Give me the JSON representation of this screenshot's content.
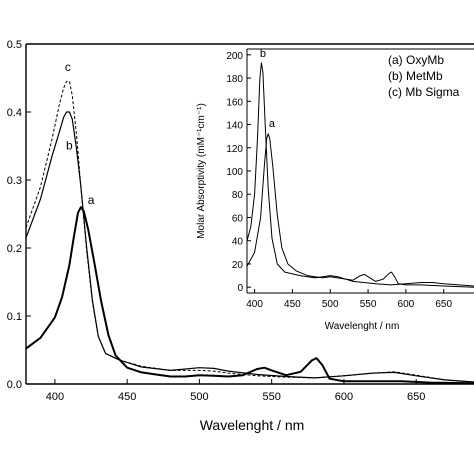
{
  "chart_data": [
    {
      "type": "line",
      "title": "",
      "xlabel": "Wavelenght / nm",
      "ylabel": "",
      "xlim": [
        380,
        690
      ],
      "ylim": [
        0.0,
        0.5
      ],
      "x_ticks": [
        "400",
        "450",
        "500",
        "550",
        "600",
        "650"
      ],
      "y_ticks": [
        "0.0",
        "0.1",
        "0.2",
        "0.3",
        "0.4",
        "0.5"
      ],
      "grid": false,
      "series": [
        {
          "name": "a",
          "style": "solid-thick",
          "points": [
            [
              380,
              0.052
            ],
            [
              390,
              0.068
            ],
            [
              400,
              0.098
            ],
            [
              405,
              0.128
            ],
            [
              410,
              0.175
            ],
            [
              413,
              0.215
            ],
            [
              416,
              0.252
            ],
            [
              418,
              0.26
            ],
            [
              420,
              0.254
            ],
            [
              423,
              0.228
            ],
            [
              427,
              0.182
            ],
            [
              432,
              0.122
            ],
            [
              437,
              0.072
            ],
            [
              442,
              0.042
            ],
            [
              450,
              0.024
            ],
            [
              460,
              0.017
            ],
            [
              470,
              0.014
            ],
            [
              480,
              0.011
            ],
            [
              490,
              0.011
            ],
            [
              500,
              0.013
            ],
            [
              510,
              0.012
            ],
            [
              520,
              0.011
            ],
            [
              530,
              0.013
            ],
            [
              540,
              0.022
            ],
            [
              545,
              0.024
            ],
            [
              550,
              0.02
            ],
            [
              560,
              0.013
            ],
            [
              570,
              0.018
            ],
            [
              578,
              0.035
            ],
            [
              581,
              0.038
            ],
            [
              585,
              0.028
            ],
            [
              590,
              0.008
            ],
            [
              600,
              0.004
            ],
            [
              620,
              0.004
            ],
            [
              640,
              0.004
            ],
            [
              660,
              0.002
            ],
            [
              690,
              0.001
            ]
          ]
        },
        {
          "name": "b",
          "style": "solid",
          "points": [
            [
              380,
              0.215
            ],
            [
              390,
              0.272
            ],
            [
              398,
              0.335
            ],
            [
              403,
              0.37
            ],
            [
              406,
              0.392
            ],
            [
              408,
              0.4
            ],
            [
              410,
              0.4
            ],
            [
              412,
              0.39
            ],
            [
              415,
              0.345
            ],
            [
              418,
              0.29
            ],
            [
              422,
              0.2
            ],
            [
              426,
              0.122
            ],
            [
              430,
              0.07
            ],
            [
              435,
              0.045
            ],
            [
              445,
              0.035
            ],
            [
              460,
              0.025
            ],
            [
              480,
              0.02
            ],
            [
              500,
              0.024
            ],
            [
              510,
              0.023
            ],
            [
              520,
              0.019
            ],
            [
              540,
              0.014
            ],
            [
              560,
              0.011
            ],
            [
              580,
              0.009
            ],
            [
              600,
              0.012
            ],
            [
              620,
              0.016
            ],
            [
              635,
              0.017
            ],
            [
              650,
              0.012
            ],
            [
              670,
              0.006
            ],
            [
              690,
              0.003
            ]
          ]
        },
        {
          "name": "c",
          "style": "dashed",
          "points": [
            [
              380,
              0.23
            ],
            [
              390,
              0.29
            ],
            [
              398,
              0.36
            ],
            [
              403,
              0.41
            ],
            [
              406,
              0.435
            ],
            [
              408,
              0.445
            ],
            [
              410,
              0.445
            ],
            [
              412,
              0.425
            ],
            [
              415,
              0.365
            ],
            [
              418,
              0.29
            ],
            [
              422,
              0.195
            ],
            [
              426,
              0.12
            ],
            [
              430,
              0.07
            ],
            [
              435,
              0.045
            ],
            [
              445,
              0.035
            ],
            [
              460,
              0.026
            ],
            [
              480,
              0.02
            ],
            [
              500,
              0.02
            ],
            [
              510,
              0.019
            ],
            [
              520,
              0.016
            ],
            [
              540,
              0.012
            ],
            [
              560,
              0.01
            ],
            [
              580,
              0.009
            ],
            [
              600,
              0.012
            ],
            [
              620,
              0.016
            ],
            [
              635,
              0.018
            ],
            [
              650,
              0.013
            ],
            [
              670,
              0.006
            ],
            [
              690,
              0.003
            ]
          ]
        }
      ],
      "annotations": [
        {
          "text": "c",
          "x": 409,
          "y": 0.46
        },
        {
          "text": "b",
          "x": 410,
          "y": 0.345
        },
        {
          "text": "a",
          "x": 425,
          "y": 0.265
        }
      ]
    },
    {
      "type": "line",
      "title": "",
      "xlabel": "Wavelenght / nm",
      "ylabel": "Molar Absorptivity (mM⁻¹cm⁻¹)",
      "xlim": [
        390,
        690
      ],
      "ylim": [
        -5,
        205
      ],
      "x_ticks": [
        "400",
        "450",
        "500",
        "550",
        "600",
        "650"
      ],
      "y_ticks": [
        "0",
        "20",
        "40",
        "60",
        "80",
        "100",
        "120",
        "140",
        "160",
        "180",
        "200"
      ],
      "grid": false,
      "series": [
        {
          "name": "a",
          "style": "solid",
          "points": [
            [
              390,
              18
            ],
            [
              400,
              30
            ],
            [
              408,
              60
            ],
            [
              413,
              105
            ],
            [
              416,
              128
            ],
            [
              418,
              132
            ],
            [
              420,
              128
            ],
            [
              424,
              105
            ],
            [
              430,
              62
            ],
            [
              436,
              34
            ],
            [
              444,
              20
            ],
            [
              455,
              14
            ],
            [
              470,
              10
            ],
            [
              490,
              8
            ],
            [
              500,
              9
            ],
            [
              510,
              8
            ],
            [
              530,
              6
            ],
            [
              540,
              10
            ],
            [
              545,
              11
            ],
            [
              550,
              9
            ],
            [
              560,
              5
            ],
            [
              570,
              7
            ],
            [
              578,
              12
            ],
            [
              581,
              13
            ],
            [
              585,
              9
            ],
            [
              590,
              3
            ],
            [
              600,
              2
            ],
            [
              620,
              2
            ],
            [
              650,
              1
            ],
            [
              690,
              0
            ]
          ]
        },
        {
          "name": "b",
          "style": "solid",
          "points": [
            [
              390,
              40
            ],
            [
              395,
              52
            ],
            [
              400,
              80
            ],
            [
              404,
              130
            ],
            [
              407,
              180
            ],
            [
              409,
              193
            ],
            [
              411,
              185
            ],
            [
              414,
              140
            ],
            [
              418,
              85
            ],
            [
              423,
              42
            ],
            [
              430,
              20
            ],
            [
              440,
              13
            ],
            [
              460,
              10
            ],
            [
              480,
              8
            ],
            [
              500,
              10
            ],
            [
              510,
              9
            ],
            [
              530,
              5
            ],
            [
              560,
              3
            ],
            [
              580,
              2
            ],
            [
              600,
              3
            ],
            [
              620,
              4
            ],
            [
              635,
              4
            ],
            [
              650,
              3
            ],
            [
              690,
              1
            ]
          ]
        }
      ],
      "annotations": [
        {
          "text": "b",
          "x": 411,
          "y": 198
        },
        {
          "text": "a",
          "x": 423,
          "y": 138
        }
      ],
      "legend": {
        "placement": "top-right",
        "entries": [
          "(a) OxyMb",
          "(b) MetMb",
          "(c) Mb Sigma"
        ]
      }
    }
  ]
}
